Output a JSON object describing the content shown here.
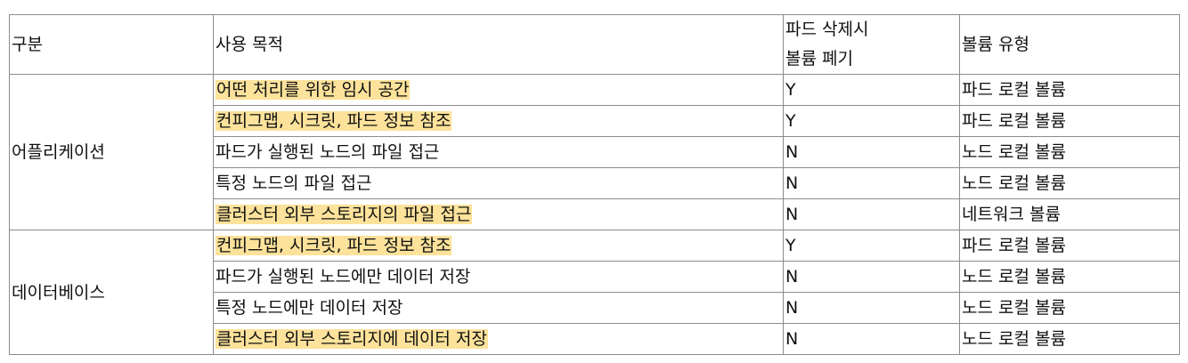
{
  "table": {
    "headers": [
      "구분",
      "사용 목적",
      "파드 삭제시 볼륨 폐기",
      "볼륨 유형"
    ],
    "header_col3_lines": [
      "파드 삭제시",
      "볼륨 폐기"
    ],
    "groups": [
      {
        "name": "어플리케이션",
        "rows": [
          {
            "purpose": "어떤 처리를 위한 임시 공간",
            "highlighted": true,
            "discard": "Y",
            "type": "파드 로컬 볼륨"
          },
          {
            "purpose": "컨피그맵, 시크릿, 파드 정보 참조",
            "highlighted": true,
            "discard": "Y",
            "type": "파드 로컬 볼륨"
          },
          {
            "purpose": "파드가 실행된 노드의 파일 접근",
            "highlighted": false,
            "discard": "N",
            "type": "노드 로컬 볼륨"
          },
          {
            "purpose": "특정 노드의 파일 접근",
            "highlighted": false,
            "discard": "N",
            "type": "노드 로컬 볼륨"
          },
          {
            "purpose": "클러스터 외부 스토리지의 파일 접근",
            "highlighted": true,
            "discard": "N",
            "type": "네트워크 볼륨"
          }
        ]
      },
      {
        "name": "데이터베이스",
        "rows": [
          {
            "purpose": "컨피그맵, 시크릿, 파드 정보 참조",
            "highlighted": true,
            "discard": "Y",
            "type": "파드 로컬 볼륨"
          },
          {
            "purpose": "파드가 실행된 노드에만 데이터 저장",
            "highlighted": false,
            "discard": "N",
            "type": "노드 로컬 볼륨"
          },
          {
            "purpose": "특정 노드에만 데이터 저장",
            "highlighted": false,
            "discard": "N",
            "type": "노드 로컬 볼륨"
          },
          {
            "purpose": "클러스터 외부 스토리지에 데이터 저장",
            "highlighted": true,
            "discard": "N",
            "type": "노드 로컬 볼륨"
          }
        ]
      }
    ]
  },
  "colors": {
    "highlight": "#fce29b",
    "border": "#8c8c8c"
  }
}
